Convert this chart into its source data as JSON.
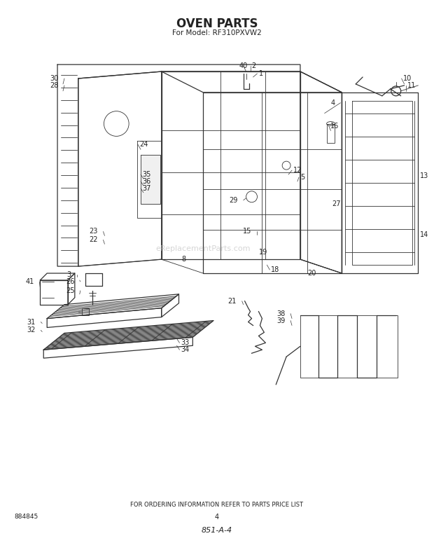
{
  "title": "OVEN PARTS",
  "subtitle": "For Model: RF310PXVW2",
  "footer_text": "FOR ORDERING INFORMATION REFER TO PARTS PRICE LIST",
  "page_number": "4",
  "doc_number": "851-A-4",
  "part_number_bottom_left": "884845",
  "background_color": "#ffffff",
  "line_color": "#333333",
  "text_color": "#222222",
  "watermark_text": "eReplacementParts.com",
  "label_fontsize": 7.0,
  "title_fontsize": 12,
  "subtitle_fontsize": 7.5
}
